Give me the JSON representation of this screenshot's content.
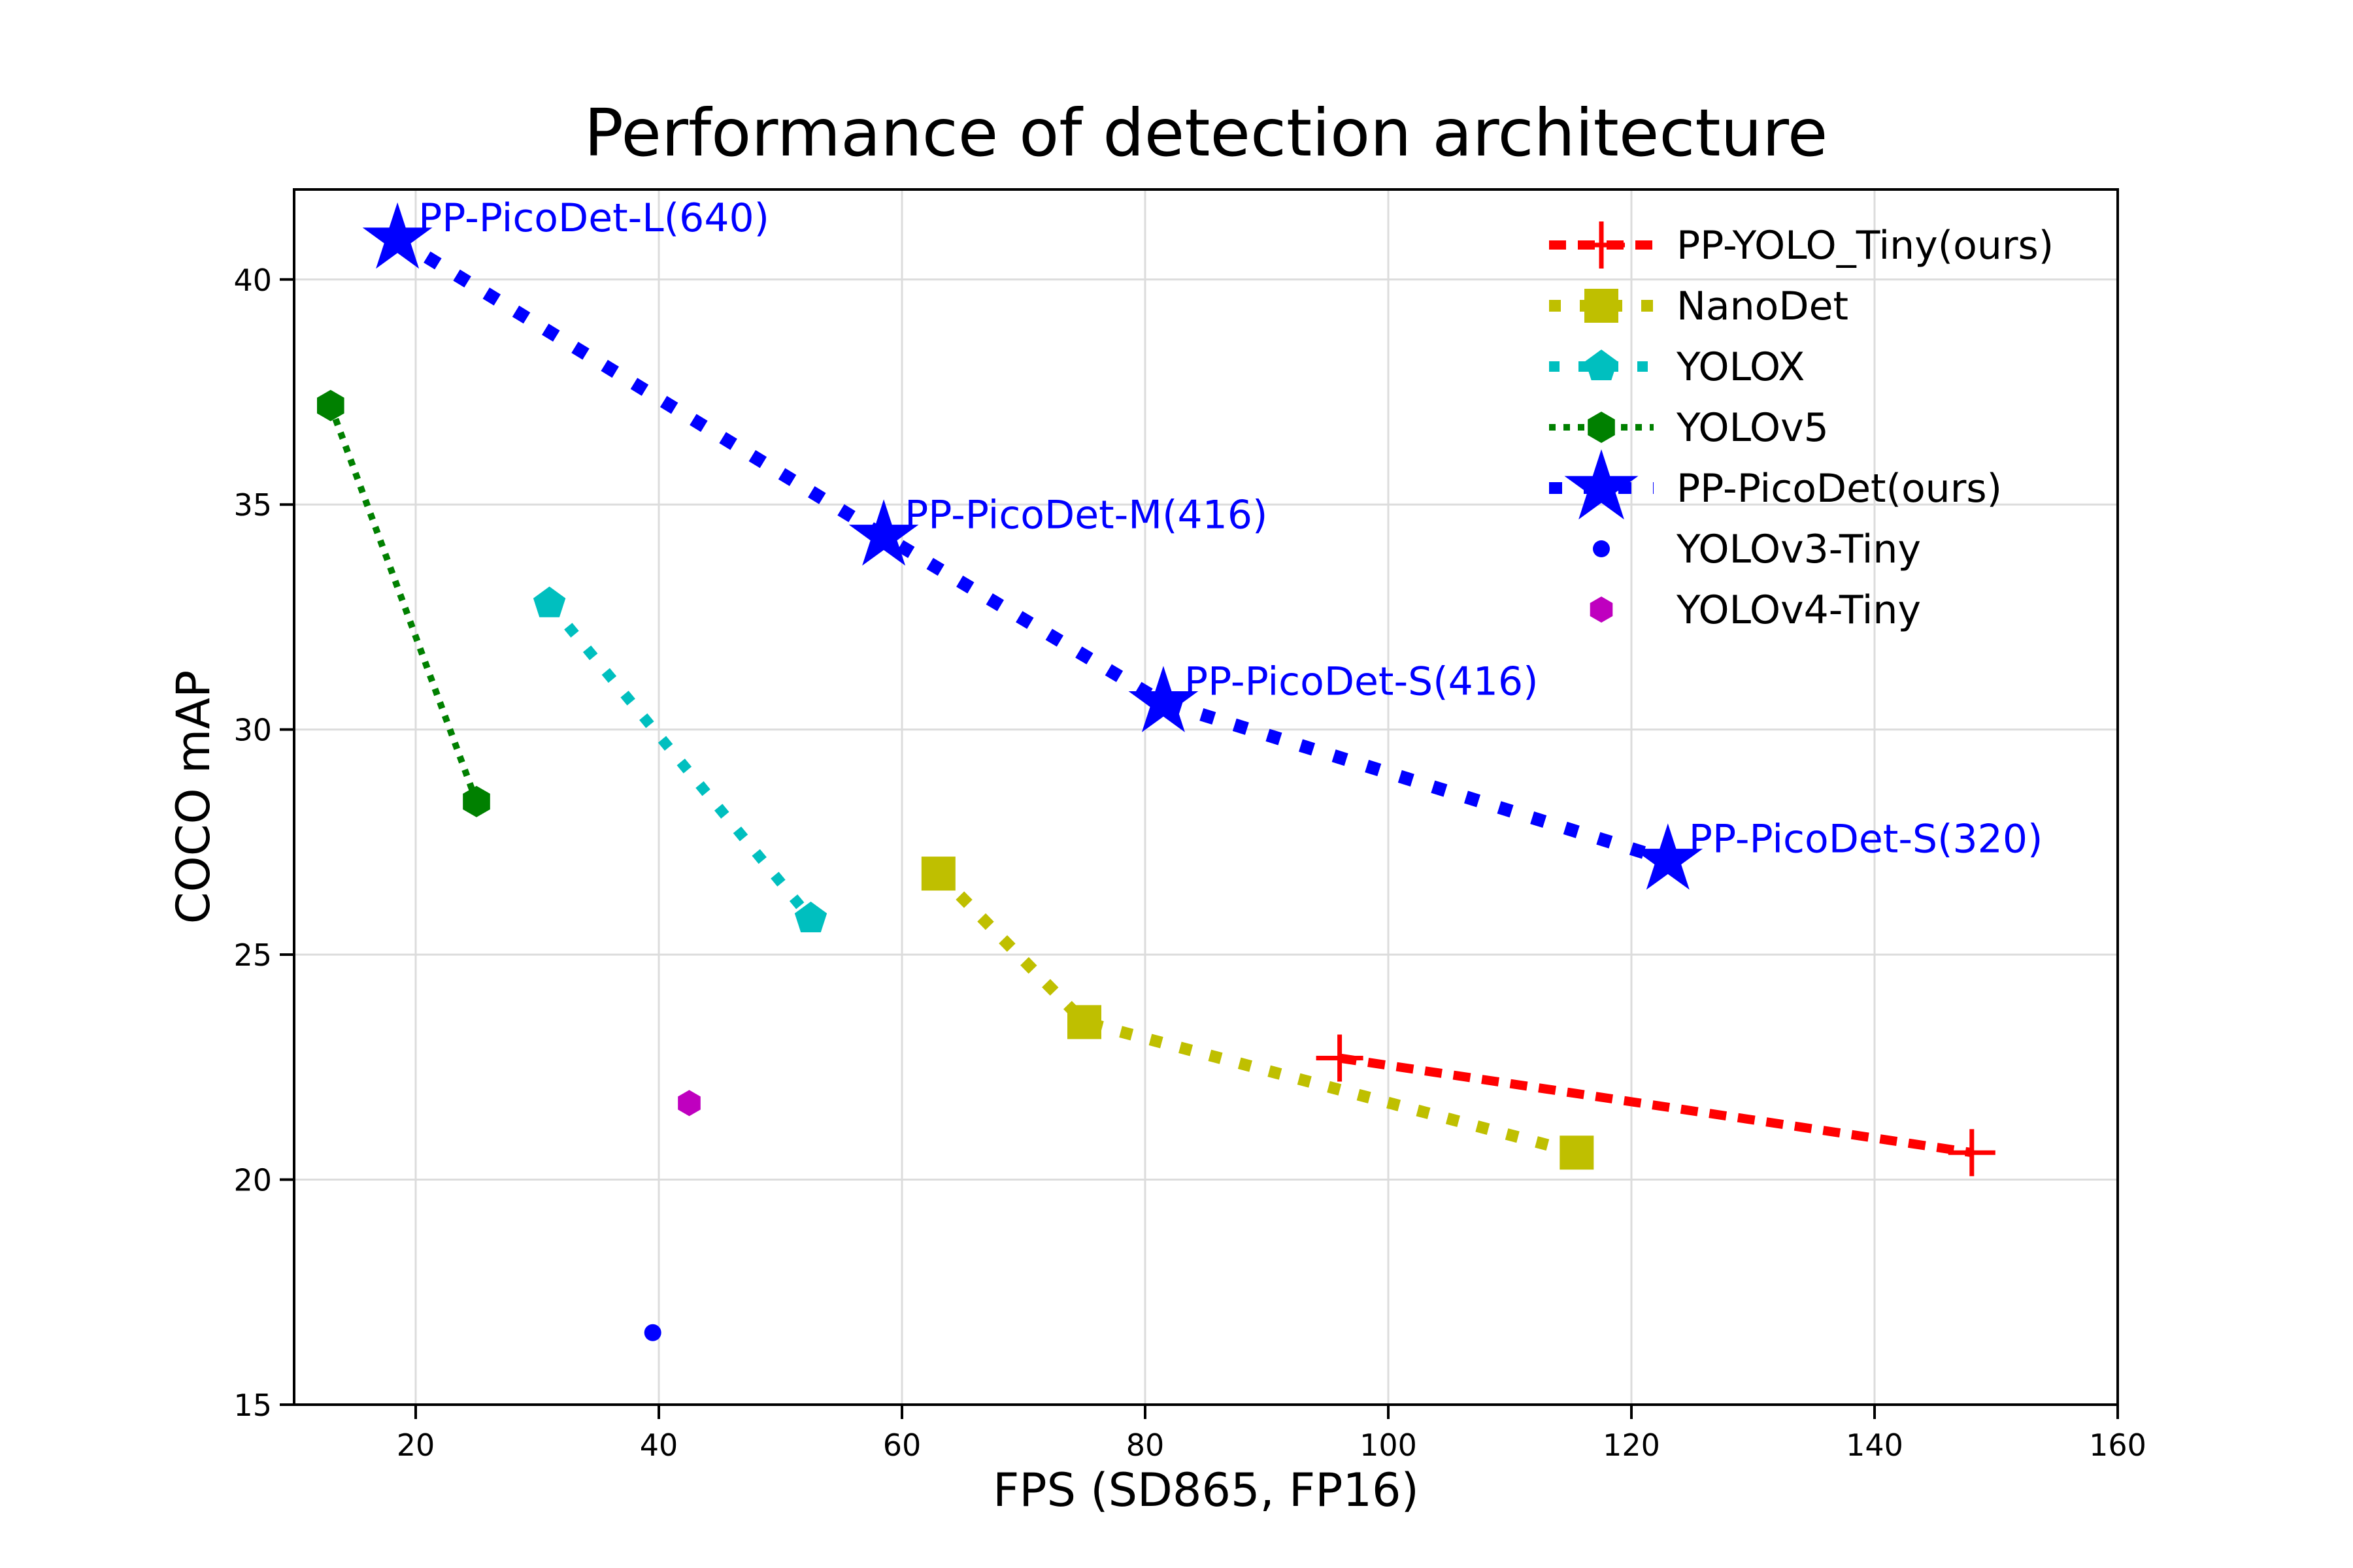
{
  "chart_data": {
    "type": "scatter",
    "title": "Performance of detection architecture",
    "xlabel": "FPS (SD865, FP16)",
    "ylabel": "COCO mAP",
    "xlim": [
      10,
      160
    ],
    "ylim": [
      15,
      42
    ],
    "x_ticks": [
      20,
      40,
      60,
      80,
      100,
      120,
      140,
      160
    ],
    "y_ticks": [
      15,
      20,
      25,
      30,
      35,
      40
    ],
    "grid": true,
    "grid_color": "#dcdcdc",
    "spine_color": "#000000",
    "background_color": "#ffffff",
    "annotation_color": "#0000ff",
    "legend_position": "upper right",
    "series": [
      {
        "name": "PP-YOLO_Tiny(ours)",
        "color": "#ff0000",
        "marker": "plus",
        "linestyle": "dashed",
        "line_width": 14,
        "dash": [
          26,
          18
        ],
        "marker_size": 36,
        "points": [
          [
            96,
            22.7
          ],
          [
            148,
            20.6
          ]
        ]
      },
      {
        "name": "NanoDet",
        "color": "#bfbf00",
        "marker": "square",
        "linestyle": "dashed",
        "line_width": 18,
        "dash": [
          18,
          29
        ],
        "marker_size": 26,
        "points": [
          [
            63,
            26.8
          ],
          [
            75,
            23.5
          ],
          [
            115.5,
            20.6
          ]
        ]
      },
      {
        "name": "YOLOX",
        "color": "#00bfbf",
        "marker": "pentagon",
        "linestyle": "dashed",
        "line_width": 16,
        "dash": [
          16,
          29
        ],
        "marker_size": 26,
        "points": [
          [
            31,
            32.8
          ],
          [
            52.5,
            25.8
          ]
        ]
      },
      {
        "name": "YOLOv5",
        "color": "#008000",
        "marker": "hexagon",
        "linestyle": "dotted",
        "line_width": 10,
        "dash": [
          10,
          12
        ],
        "marker_size": 24,
        "points": [
          [
            13,
            37.2
          ],
          [
            25,
            28.4
          ]
        ]
      },
      {
        "name": "PP-PicoDet(ours)",
        "color": "#0000ff",
        "marker": "star",
        "linestyle": "dashed",
        "line_width": 20,
        "dash": [
          20,
          33
        ],
        "marker_size": 34,
        "points": [
          [
            18.5,
            40.9
          ],
          [
            58.5,
            34.3
          ],
          [
            81.5,
            30.6
          ],
          [
            123,
            27.1
          ]
        ]
      },
      {
        "name": "YOLOv3-Tiny",
        "color": "#0000ff",
        "marker": "circle",
        "linestyle": "none",
        "line_width": 0,
        "dash": [],
        "marker_size": 13,
        "points": [
          [
            39.5,
            16.6
          ]
        ]
      },
      {
        "name": "YOLOv4-Tiny",
        "color": "#bf00bf",
        "marker": "hexagon",
        "linestyle": "none",
        "line_width": 0,
        "dash": [],
        "marker_size": 20,
        "points": [
          [
            42.5,
            21.7
          ]
        ]
      }
    ],
    "annotations": [
      {
        "text": "PP-PicoDet-L(640)",
        "x": 18.5,
        "y": 40.9
      },
      {
        "text": "PP-PicoDet-M(416)",
        "x": 58.5,
        "y": 34.3
      },
      {
        "text": "PP-PicoDet-S(416)",
        "x": 81.5,
        "y": 30.6
      },
      {
        "text": "PP-PicoDet-S(320)",
        "x": 123,
        "y": 27.1
      }
    ]
  }
}
